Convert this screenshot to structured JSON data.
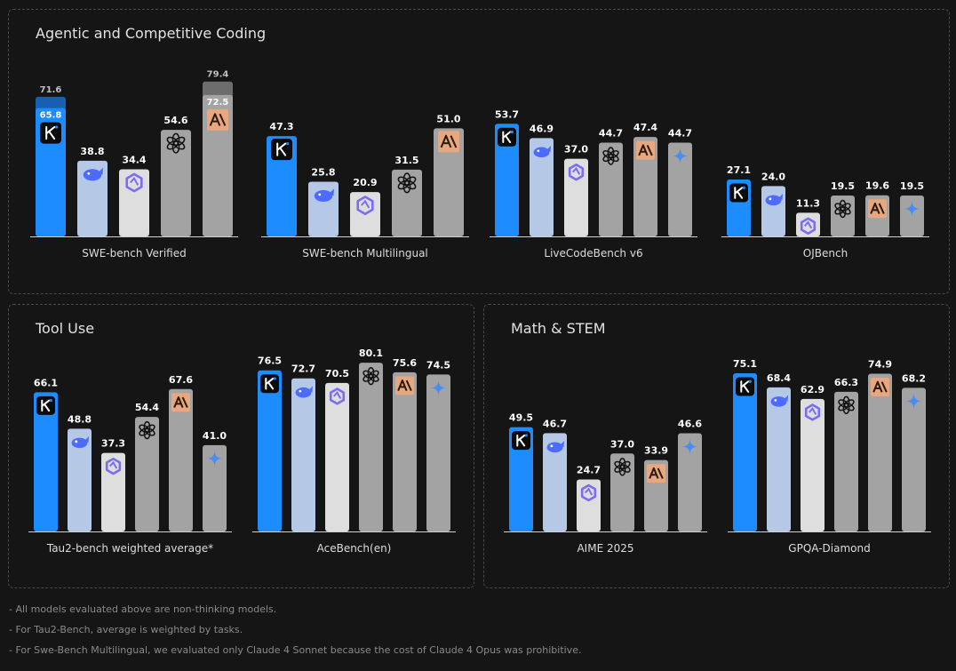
{
  "panels": {
    "coding": {
      "title": "Agentic and Competitive Coding"
    },
    "tool": {
      "title": "Tool Use"
    },
    "math": {
      "title": "Math & STEM"
    }
  },
  "models": [
    "kimi",
    "deepseek",
    "qwen",
    "openai",
    "anthropic",
    "gemini"
  ],
  "colors": {
    "kimi": "#1c8cff",
    "deepseek": "#b5c8e5",
    "qwen": "#dedede",
    "openai": "#a3a3a3",
    "anthropic": "#a3a3a3",
    "gemini": "#a3a3a3",
    "anthropic_logo_bg": "#e8a77e",
    "anthropic_logo_fg": "#2a1a10",
    "deepseek_logo": "#4d6bfe",
    "qwen_logo": "#7b6cf6",
    "gemini_logo": "#4a8cf0",
    "label": "#ffffff"
  },
  "chart_data": [
    {
      "type": "bar",
      "title": "SWE-bench Verified",
      "panel": "coding",
      "series": [
        {
          "model": "kimi",
          "value": 65.8,
          "label": "65.8",
          "extra_value": 71.6,
          "extra_label": "71.6"
        },
        {
          "model": "deepseek",
          "value": 38.8,
          "label": "38.8"
        },
        {
          "model": "qwen",
          "value": 34.4,
          "label": "34.4"
        },
        {
          "model": "openai",
          "value": 54.6,
          "label": "54.6"
        },
        {
          "model": "anthropic",
          "value": 72.5,
          "label": "72.5",
          "extra_value": 79.4,
          "extra_label": "79.4"
        }
      ]
    },
    {
      "type": "bar",
      "title": "SWE-bench Multilingual",
      "panel": "coding",
      "series": [
        {
          "model": "kimi",
          "value": 47.3,
          "label": "47.3"
        },
        {
          "model": "deepseek",
          "value": 25.8,
          "label": "25.8"
        },
        {
          "model": "qwen",
          "value": 20.9,
          "label": "20.9"
        },
        {
          "model": "openai",
          "value": 31.5,
          "label": "31.5"
        },
        {
          "model": "anthropic",
          "value": 51.0,
          "label": "51.0"
        }
      ]
    },
    {
      "type": "bar",
      "title": "LiveCodeBench v6",
      "panel": "coding",
      "series": [
        {
          "model": "kimi",
          "value": 53.7,
          "label": "53.7"
        },
        {
          "model": "deepseek",
          "value": 46.9,
          "label": "46.9"
        },
        {
          "model": "qwen",
          "value": 37.0,
          "label": "37.0"
        },
        {
          "model": "openai",
          "value": 44.7,
          "label": "44.7"
        },
        {
          "model": "anthropic",
          "value": 47.4,
          "label": "47.4"
        },
        {
          "model": "gemini",
          "value": 44.7,
          "label": "44.7"
        }
      ]
    },
    {
      "type": "bar",
      "title": "OJBench",
      "panel": "coding",
      "series": [
        {
          "model": "kimi",
          "value": 27.1,
          "label": "27.1"
        },
        {
          "model": "deepseek",
          "value": 24.0,
          "label": "24.0"
        },
        {
          "model": "qwen",
          "value": 11.3,
          "label": "11.3"
        },
        {
          "model": "openai",
          "value": 19.5,
          "label": "19.5"
        },
        {
          "model": "anthropic",
          "value": 19.6,
          "label": "19.6"
        },
        {
          "model": "gemini",
          "value": 19.5,
          "label": "19.5"
        }
      ]
    },
    {
      "type": "bar",
      "title": "Tau2-bench weighted average*",
      "panel": "tool",
      "series": [
        {
          "model": "kimi",
          "value": 66.1,
          "label": "66.1"
        },
        {
          "model": "deepseek",
          "value": 48.8,
          "label": "48.8"
        },
        {
          "model": "qwen",
          "value": 37.3,
          "label": "37.3"
        },
        {
          "model": "openai",
          "value": 54.4,
          "label": "54.4"
        },
        {
          "model": "anthropic",
          "value": 67.6,
          "label": "67.6"
        },
        {
          "model": "gemini",
          "value": 41.0,
          "label": "41.0"
        }
      ]
    },
    {
      "type": "bar",
      "title": "AceBench(en)",
      "panel": "tool",
      "series": [
        {
          "model": "kimi",
          "value": 76.5,
          "label": "76.5"
        },
        {
          "model": "deepseek",
          "value": 72.7,
          "label": "72.7"
        },
        {
          "model": "qwen",
          "value": 70.5,
          "label": "70.5"
        },
        {
          "model": "openai",
          "value": 80.1,
          "label": "80.1"
        },
        {
          "model": "anthropic",
          "value": 75.6,
          "label": "75.6"
        },
        {
          "model": "gemini",
          "value": 74.5,
          "label": "74.5"
        }
      ]
    },
    {
      "type": "bar",
      "title": "AIME 2025",
      "panel": "math",
      "series": [
        {
          "model": "kimi",
          "value": 49.5,
          "label": "49.5"
        },
        {
          "model": "deepseek",
          "value": 46.7,
          "label": "46.7"
        },
        {
          "model": "qwen",
          "value": 24.7,
          "label": "24.7"
        },
        {
          "model": "openai",
          "value": 37.0,
          "label": "37.0"
        },
        {
          "model": "anthropic",
          "value": 33.9,
          "label": "33.9"
        },
        {
          "model": "gemini",
          "value": 46.6,
          "label": "46.6"
        }
      ]
    },
    {
      "type": "bar",
      "title": "GPQA-Diamond",
      "panel": "math",
      "series": [
        {
          "model": "kimi",
          "value": 75.1,
          "label": "75.1"
        },
        {
          "model": "deepseek",
          "value": 68.4,
          "label": "68.4"
        },
        {
          "model": "qwen",
          "value": 62.9,
          "label": "62.9"
        },
        {
          "model": "openai",
          "value": 66.3,
          "label": "66.3"
        },
        {
          "model": "anthropic",
          "value": 74.9,
          "label": "74.9"
        },
        {
          "model": "gemini",
          "value": 68.2,
          "label": "68.2"
        }
      ]
    }
  ],
  "footnotes": {
    "f1": "- All models evaluated above are non-thinking models.",
    "f2": "- For Tau2-Bench, average is weighted by tasks.",
    "f3": "- For Swe-Bench Multilingual, we evaluated only Claude 4 Sonnet because the cost of Claude 4 Opus was prohibitive."
  }
}
